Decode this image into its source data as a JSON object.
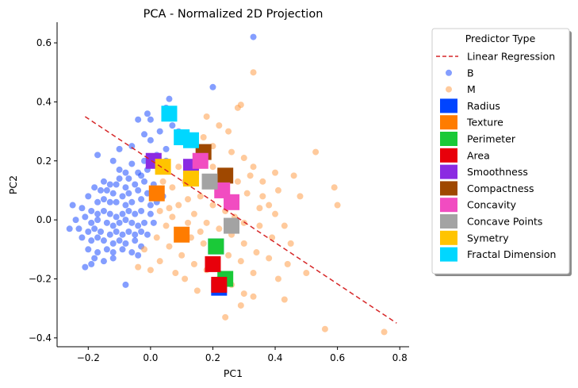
{
  "chart_data": {
    "type": "scatter",
    "title": "PCA - Normalized 2D Projection",
    "xlabel": "PC1",
    "ylabel": "PC2",
    "xlim": [
      -0.3,
      0.83
    ],
    "ylim": [
      -0.43,
      0.67
    ],
    "xticks": [
      -0.2,
      0.0,
      0.2,
      0.4,
      0.6,
      0.8
    ],
    "yticks": [
      -0.4,
      -0.2,
      0.0,
      0.2,
      0.4,
      0.6
    ],
    "grid": false,
    "legend": {
      "title": "Predictor Type",
      "placement": "outside-right",
      "entries": [
        {
          "label": "Linear Regression",
          "kind": "line",
          "color": "#d62728"
        },
        {
          "label": "B",
          "kind": "point",
          "color": "#1f4eff"
        },
        {
          "label": "M",
          "kind": "point",
          "color": "#ff9e4a"
        },
        {
          "label": "Radius",
          "kind": "square",
          "color": "#0044ff"
        },
        {
          "label": "Texture",
          "kind": "square",
          "color": "#ff7c00"
        },
        {
          "label": "Perimeter",
          "kind": "square",
          "color": "#1ac938"
        },
        {
          "label": "Area",
          "kind": "square",
          "color": "#e8000b"
        },
        {
          "label": "Smoothness",
          "kind": "square",
          "color": "#8b2be2"
        },
        {
          "label": "Compactness",
          "kind": "square",
          "color": "#9f4800"
        },
        {
          "label": "Concavity",
          "kind": "square",
          "color": "#f14cc1"
        },
        {
          "label": "Concave Points",
          "kind": "square",
          "color": "#a3a3a3"
        },
        {
          "label": "Symetry",
          "kind": "square",
          "color": "#ffc400"
        },
        {
          "label": "Fractal Dimension",
          "kind": "square",
          "color": "#00d7ff"
        }
      ]
    },
    "regression_line": {
      "x": [
        -0.21,
        0.79
      ],
      "y": [
        0.35,
        -0.35
      ],
      "color": "#d62728",
      "style": "dashed"
    },
    "series": [
      {
        "name": "B",
        "color": "#1f4eff",
        "opacity": 0.55,
        "points": [
          [
            0.33,
            0.62
          ],
          [
            0.2,
            0.45
          ],
          [
            0.06,
            0.41
          ],
          [
            0.05,
            0.38
          ],
          [
            -0.01,
            0.36
          ],
          [
            0.0,
            0.34
          ],
          [
            0.07,
            0.32
          ],
          [
            -0.04,
            0.34
          ],
          [
            -0.02,
            0.29
          ],
          [
            0.03,
            0.3
          ],
          [
            0.09,
            0.3
          ],
          [
            -0.1,
            0.24
          ],
          [
            -0.06,
            0.25
          ],
          [
            0.0,
            0.27
          ],
          [
            0.05,
            0.24
          ],
          [
            -0.17,
            0.22
          ],
          [
            -0.12,
            0.2
          ],
          [
            -0.06,
            0.19
          ],
          [
            -0.02,
            0.2
          ],
          [
            0.02,
            0.22
          ],
          [
            0.05,
            0.2
          ],
          [
            -0.08,
            0.16
          ],
          [
            -0.1,
            0.14
          ],
          [
            -0.04,
            0.16
          ],
          [
            -0.01,
            0.17
          ],
          [
            -0.15,
            0.13
          ],
          [
            -0.13,
            0.12
          ],
          [
            -0.11,
            0.12
          ],
          [
            -0.08,
            0.11
          ],
          [
            -0.05,
            0.12
          ],
          [
            -0.02,
            0.13
          ],
          [
            0.01,
            0.12
          ],
          [
            -0.18,
            0.11
          ],
          [
            -0.16,
            0.1
          ],
          [
            -0.14,
            0.1
          ],
          [
            -0.12,
            0.09
          ],
          [
            -0.09,
            0.08
          ],
          [
            -0.07,
            0.09
          ],
          [
            -0.04,
            0.1
          ],
          [
            -0.01,
            0.09
          ],
          [
            0.02,
            0.1
          ],
          [
            0.04,
            0.08
          ],
          [
            -0.2,
            0.08
          ],
          [
            -0.17,
            0.06
          ],
          [
            -0.15,
            0.07
          ],
          [
            -0.13,
            0.06
          ],
          [
            -0.11,
            0.06
          ],
          [
            -0.08,
            0.05
          ],
          [
            -0.06,
            0.06
          ],
          [
            -0.03,
            0.07
          ],
          [
            0.0,
            0.05
          ],
          [
            0.02,
            0.06
          ],
          [
            -0.25,
            0.05
          ],
          [
            -0.22,
            0.04
          ],
          [
            -0.19,
            0.03
          ],
          [
            -0.17,
            0.02
          ],
          [
            -0.15,
            0.03
          ],
          [
            -0.13,
            0.02
          ],
          [
            -0.11,
            0.01
          ],
          [
            -0.09,
            0.02
          ],
          [
            -0.07,
            0.03
          ],
          [
            -0.05,
            0.02
          ],
          [
            -0.03,
            0.03
          ],
          [
            0.0,
            0.02
          ],
          [
            -0.24,
            0.0
          ],
          [
            -0.21,
            0.01
          ],
          [
            -0.19,
            -0.01
          ],
          [
            -0.17,
            0.0
          ],
          [
            -0.14,
            -0.01
          ],
          [
            -0.12,
            -0.02
          ],
          [
            -0.1,
            -0.01
          ],
          [
            -0.08,
            0.0
          ],
          [
            -0.06,
            -0.01
          ],
          [
            -0.04,
            -0.02
          ],
          [
            -0.02,
            -0.01
          ],
          [
            0.01,
            -0.01
          ],
          [
            -0.26,
            -0.03
          ],
          [
            -0.23,
            -0.03
          ],
          [
            -0.2,
            -0.04
          ],
          [
            -0.18,
            -0.03
          ],
          [
            -0.16,
            -0.04
          ],
          [
            -0.13,
            -0.05
          ],
          [
            -0.11,
            -0.04
          ],
          [
            -0.09,
            -0.05
          ],
          [
            -0.07,
            -0.04
          ],
          [
            -0.05,
            -0.05
          ],
          [
            -0.03,
            -0.04
          ],
          [
            -0.01,
            -0.05
          ],
          [
            -0.22,
            -0.06
          ],
          [
            -0.19,
            -0.07
          ],
          [
            -0.17,
            -0.06
          ],
          [
            -0.15,
            -0.07
          ],
          [
            -0.12,
            -0.08
          ],
          [
            -0.1,
            -0.07
          ],
          [
            -0.08,
            -0.08
          ],
          [
            -0.05,
            -0.07
          ],
          [
            -0.03,
            -0.09
          ],
          [
            -0.2,
            -0.1
          ],
          [
            -0.17,
            -0.11
          ],
          [
            -0.14,
            -0.1
          ],
          [
            -0.12,
            -0.11
          ],
          [
            -0.09,
            -0.1
          ],
          [
            -0.06,
            -0.11
          ],
          [
            -0.04,
            -0.12
          ],
          [
            -0.18,
            -0.13
          ],
          [
            -0.15,
            -0.14
          ],
          [
            -0.12,
            -0.13
          ],
          [
            -0.21,
            -0.16
          ],
          [
            -0.19,
            -0.15
          ],
          [
            -0.08,
            -0.22
          ],
          [
            -0.1,
            0.17
          ],
          [
            -0.07,
            0.14
          ],
          [
            -0.03,
            0.15
          ]
        ]
      },
      {
        "name": "M",
        "color": "#ff9e4a",
        "opacity": 0.55,
        "points": [
          [
            0.33,
            0.5
          ],
          [
            0.29,
            0.39
          ],
          [
            0.28,
            0.38
          ],
          [
            0.18,
            0.35
          ],
          [
            0.22,
            0.32
          ],
          [
            0.25,
            0.3
          ],
          [
            0.17,
            0.28
          ],
          [
            0.53,
            0.23
          ],
          [
            0.2,
            0.25
          ],
          [
            0.26,
            0.23
          ],
          [
            0.3,
            0.21
          ],
          [
            0.4,
            0.16
          ],
          [
            0.46,
            0.15
          ],
          [
            0.33,
            0.18
          ],
          [
            0.36,
            0.13
          ],
          [
            0.41,
            0.1
          ],
          [
            0.48,
            0.08
          ],
          [
            0.59,
            0.11
          ],
          [
            0.6,
            0.05
          ],
          [
            0.31,
            0.09
          ],
          [
            0.27,
            0.07
          ],
          [
            0.35,
            0.04
          ],
          [
            0.4,
            0.02
          ],
          [
            0.43,
            -0.02
          ],
          [
            0.3,
            -0.01
          ],
          [
            0.24,
            0.03
          ],
          [
            0.2,
            0.05
          ],
          [
            0.16,
            0.08
          ],
          [
            0.12,
            0.07
          ],
          [
            0.09,
            0.05
          ],
          [
            0.06,
            0.04
          ],
          [
            0.03,
            0.03
          ],
          [
            0.14,
            0.02
          ],
          [
            0.18,
            -0.01
          ],
          [
            0.22,
            -0.03
          ],
          [
            0.26,
            -0.05
          ],
          [
            0.3,
            -0.08
          ],
          [
            0.34,
            -0.11
          ],
          [
            0.38,
            -0.13
          ],
          [
            0.44,
            -0.15
          ],
          [
            0.5,
            -0.18
          ],
          [
            0.41,
            -0.2
          ],
          [
            0.33,
            -0.18
          ],
          [
            0.29,
            -0.14
          ],
          [
            0.25,
            -0.12
          ],
          [
            0.21,
            -0.1
          ],
          [
            0.17,
            -0.08
          ],
          [
            0.13,
            -0.06
          ],
          [
            0.09,
            -0.04
          ],
          [
            0.05,
            -0.02
          ],
          [
            0.02,
            -0.06
          ],
          [
            0.06,
            -0.09
          ],
          [
            0.1,
            -0.12
          ],
          [
            0.14,
            -0.15
          ],
          [
            0.18,
            -0.17
          ],
          [
            0.22,
            -0.2
          ],
          [
            0.26,
            -0.22
          ],
          [
            0.3,
            -0.25
          ],
          [
            0.33,
            -0.26
          ],
          [
            0.24,
            -0.33
          ],
          [
            0.29,
            -0.29
          ],
          [
            0.43,
            -0.27
          ],
          [
            0.56,
            -0.37
          ],
          [
            0.75,
            -0.38
          ],
          [
            0.08,
            -0.18
          ],
          [
            0.11,
            -0.2
          ],
          [
            0.15,
            -0.24
          ],
          [
            0.03,
            -0.14
          ],
          [
            -0.02,
            -0.1
          ],
          [
            -0.04,
            -0.16
          ],
          [
            0.0,
            -0.17
          ],
          [
            0.12,
            -0.01
          ],
          [
            0.16,
            -0.04
          ],
          [
            0.07,
            0.01
          ],
          [
            0.19,
            0.12
          ],
          [
            0.23,
            0.1
          ],
          [
            0.11,
            0.13
          ],
          [
            0.13,
            0.16
          ],
          [
            0.09,
            0.18
          ],
          [
            0.07,
            0.11
          ],
          [
            0.04,
            0.13
          ],
          [
            0.2,
            0.18
          ],
          [
            0.15,
            0.21
          ],
          [
            0.28,
            0.13
          ],
          [
            0.32,
            0.15
          ],
          [
            0.36,
            0.08
          ],
          [
            0.38,
            0.05
          ],
          [
            0.45,
            -0.08
          ],
          [
            0.39,
            -0.06
          ],
          [
            0.35,
            -0.02
          ],
          [
            0.27,
            0.01
          ]
        ]
      }
    ],
    "predictor_markers": [
      {
        "name": "Radius",
        "color": "#0044ff",
        "x": 0.21,
        "y": -0.09
      },
      {
        "name": "Radius",
        "color": "#0044ff",
        "x": 0.22,
        "y": -0.23
      },
      {
        "name": "Texture",
        "color": "#ff7c00",
        "x": 0.1,
        "y": -0.05
      },
      {
        "name": "Texture",
        "color": "#ff7c00",
        "x": 0.02,
        "y": 0.09
      },
      {
        "name": "Perimeter",
        "color": "#1ac938",
        "x": 0.21,
        "y": -0.09
      },
      {
        "name": "Perimeter",
        "color": "#1ac938",
        "x": 0.24,
        "y": -0.2
      },
      {
        "name": "Area",
        "color": "#e8000b",
        "x": 0.2,
        "y": -0.15
      },
      {
        "name": "Area",
        "color": "#e8000b",
        "x": 0.22,
        "y": -0.22
      },
      {
        "name": "Smoothness",
        "color": "#8b2be2",
        "x": 0.01,
        "y": 0.2
      },
      {
        "name": "Smoothness",
        "color": "#8b2be2",
        "x": 0.13,
        "y": 0.18
      },
      {
        "name": "Compactness",
        "color": "#9f4800",
        "x": 0.17,
        "y": 0.23
      },
      {
        "name": "Compactness",
        "color": "#9f4800",
        "x": 0.24,
        "y": 0.15
      },
      {
        "name": "Concavity",
        "color": "#f14cc1",
        "x": 0.16,
        "y": 0.2
      },
      {
        "name": "Concavity",
        "color": "#f14cc1",
        "x": 0.23,
        "y": 0.1
      },
      {
        "name": "Concavity",
        "color": "#f14cc1",
        "x": 0.26,
        "y": 0.06
      },
      {
        "name": "Concave Points",
        "color": "#a3a3a3",
        "x": 0.19,
        "y": 0.13
      },
      {
        "name": "Concave Points",
        "color": "#a3a3a3",
        "x": 0.26,
        "y": -0.02
      },
      {
        "name": "Symetry",
        "color": "#ffc400",
        "x": 0.04,
        "y": 0.18
      },
      {
        "name": "Symetry",
        "color": "#ffc400",
        "x": 0.13,
        "y": 0.14
      },
      {
        "name": "Fractal Dimension",
        "color": "#00d7ff",
        "x": 0.06,
        "y": 0.36
      },
      {
        "name": "Fractal Dimension",
        "color": "#00d7ff",
        "x": 0.1,
        "y": 0.28
      },
      {
        "name": "Fractal Dimension",
        "color": "#00d7ff",
        "x": 0.13,
        "y": 0.27
      }
    ]
  }
}
